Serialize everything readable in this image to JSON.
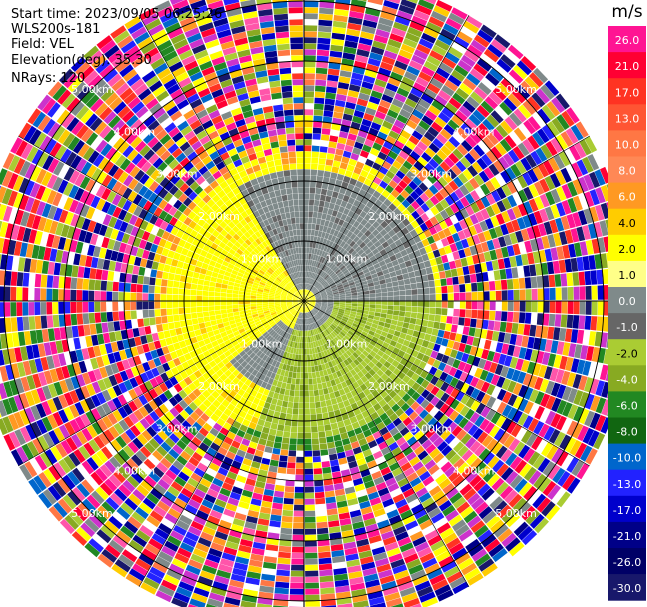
{
  "header": {
    "start_time": "Start time: 2023/09/05 06:25:26",
    "instrument": "WLS200s-181",
    "field": "Field: VEL",
    "elevation": "Elevation(deg): 35.30",
    "nrays": "NRays: 120"
  },
  "colorbar": {
    "unit": "m/s",
    "ticks": [
      "26.0",
      "21.0",
      "17.0",
      "13.0",
      "10.0",
      "8.0",
      "6.0",
      "4.0",
      "2.0",
      "1.0",
      "0.0",
      "-1.0",
      "-2.0",
      "-4.0",
      "-6.0",
      "-8.0",
      "-10.0",
      "-13.0",
      "-17.0",
      "-21.0",
      "-26.0",
      "-30.0"
    ],
    "colors": [
      "#ff1493",
      "#ff0033",
      "#ff3322",
      "#ff5533",
      "#ff7744",
      "#ff8855",
      "#ff9922",
      "#ffcc00",
      "#ffff00",
      "#ffff88",
      "#7f8a8a",
      "#666666",
      "#aacc33",
      "#88aa22",
      "#228822",
      "#116611",
      "#0066cc",
      "#2222ff",
      "#0000cc",
      "#000088",
      "#000066",
      "#18186b"
    ]
  },
  "chart_data": {
    "type": "heatmap",
    "subtype": "polar PPI (plan position indicator)",
    "field": "VEL",
    "units": "m/s",
    "n_rays": 120,
    "range_rings_km": [
      1.0,
      2.0,
      3.0,
      4.0,
      5.0
    ],
    "range_ring_labels": [
      "1.00km",
      "2.00km",
      "3.00km",
      "4.00km",
      "5.00km"
    ],
    "max_range_km": 5.5,
    "value_range": [
      -30.0,
      26.0
    ],
    "regions": [
      {
        "range_km": [
          0.0,
          0.6
        ],
        "velocity": "~0 (gray)"
      },
      {
        "range_km": [
          0.6,
          2.2
        ],
        "sector": "north",
        "velocity": "0 to -1 (gray)"
      },
      {
        "range_km": [
          0.6,
          2.2
        ],
        "sector": "south-east",
        "velocity": "-2 to -4 (green)"
      },
      {
        "range_km": [
          0.6,
          2.2
        ],
        "sector": "west",
        "velocity": "+2 (yellow)"
      },
      {
        "range_km": [
          2.2,
          5.5
        ],
        "velocity": "noisy, all values"
      }
    ]
  }
}
